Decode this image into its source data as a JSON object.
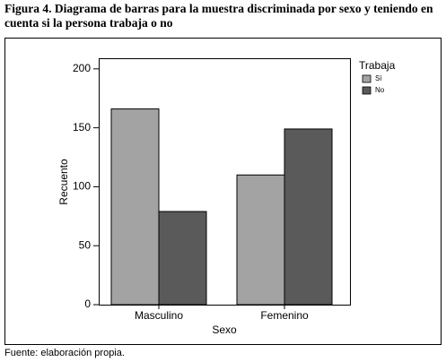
{
  "chart_data": {
    "type": "bar",
    "title": "Figura 4. Diagrama de barras para la muestra discriminada por sexo y teniendo en cuenta si la persona trabaja o no",
    "source": "Fuente: elaboración propia.",
    "x_label": "Sexo",
    "y_label": "Recuento",
    "legend_title": "Trabaja",
    "categories": [
      "Masculino",
      "Femenino"
    ],
    "series": [
      {
        "name": "Sí",
        "color": "#a3a3a3",
        "values": [
          166,
          110
        ]
      },
      {
        "name": "No",
        "color": "#5a5a5a",
        "values": [
          79,
          149
        ]
      }
    ],
    "ylim": [
      0,
      209
    ],
    "yticks": [
      0,
      50,
      100,
      150,
      200
    ],
    "grid": false,
    "legend": "right"
  }
}
